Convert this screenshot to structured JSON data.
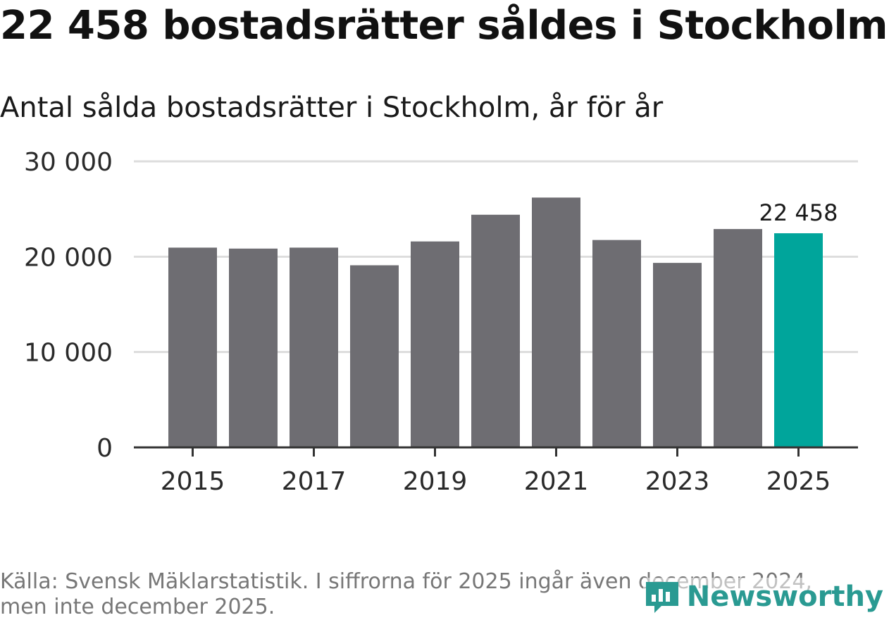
{
  "title": "22 458 bostadsrätter såldes i Stockholm",
  "subtitle": "Antal sålda bostadsrätter i Stockholm, år för år",
  "source": "Källa: Svensk Mäklarstatistik. I siffrorna för 2025 ingår även december 2024, men inte december 2025.",
  "brand": {
    "name": "Newsworthy",
    "icon": "newsworthy-logo-icon"
  },
  "colors": {
    "bar": "#6e6d72",
    "highlight": "#00a59b",
    "grid": "#dddddd",
    "axis": "#333333"
  },
  "chart_data": {
    "type": "bar",
    "title": "Antal sålda bostadsrätter i Stockholm, år för år",
    "xlabel": "",
    "ylabel": "",
    "categories": [
      "2015",
      "2016",
      "2017",
      "2018",
      "2019",
      "2020",
      "2021",
      "2022",
      "2023",
      "2024",
      "2025"
    ],
    "values": [
      20950,
      20850,
      20950,
      19100,
      21600,
      24400,
      26200,
      21750,
      19350,
      22900,
      22458
    ],
    "highlight_index": 10,
    "ylim": [
      0,
      30000
    ],
    "yticks": [
      0,
      10000,
      20000,
      30000
    ],
    "ytick_labels": [
      "0",
      "10 000",
      "20 000",
      "30 000"
    ],
    "xtick_labels": [
      "2015",
      "2017",
      "2019",
      "2021",
      "2023",
      "2025"
    ],
    "annotation": {
      "label": "22 458",
      "category": "2025"
    },
    "grid": true
  }
}
